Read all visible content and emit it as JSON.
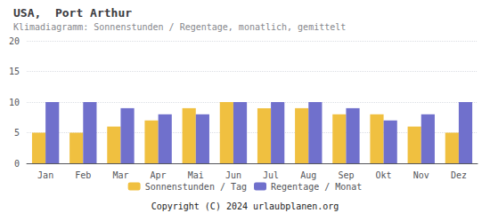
{
  "chart_data": {
    "type": "bar",
    "title": "USA,  Port Arthur",
    "subtitle": "Klimadiagramm: Sonnenstunden / Regentage, monatlich, gemittelt",
    "annotations": [
      "Copyright (C) 2024 urlaubplanen.org"
    ],
    "categories": [
      "Jan",
      "Feb",
      "Mar",
      "Apr",
      "Mai",
      "Jun",
      "Jul",
      "Aug",
      "Sep",
      "Okt",
      "Nov",
      "Dez"
    ],
    "series": [
      {
        "name": "Sonnenstunden / Tag",
        "color": "#F0C040",
        "values": [
          5,
          5,
          6,
          7,
          9,
          10,
          9,
          9,
          8,
          8,
          6,
          5
        ]
      },
      {
        "name": "Regentage / Monat",
        "color": "#7070CC",
        "values": [
          10,
          10,
          9,
          8,
          8,
          10,
          10,
          10,
          9,
          7,
          8,
          10
        ]
      }
    ],
    "ylim": [
      0,
      20
    ],
    "yticks": [
      0,
      5,
      10,
      15,
      20
    ],
    "grid": true,
    "legend": "bottom"
  }
}
